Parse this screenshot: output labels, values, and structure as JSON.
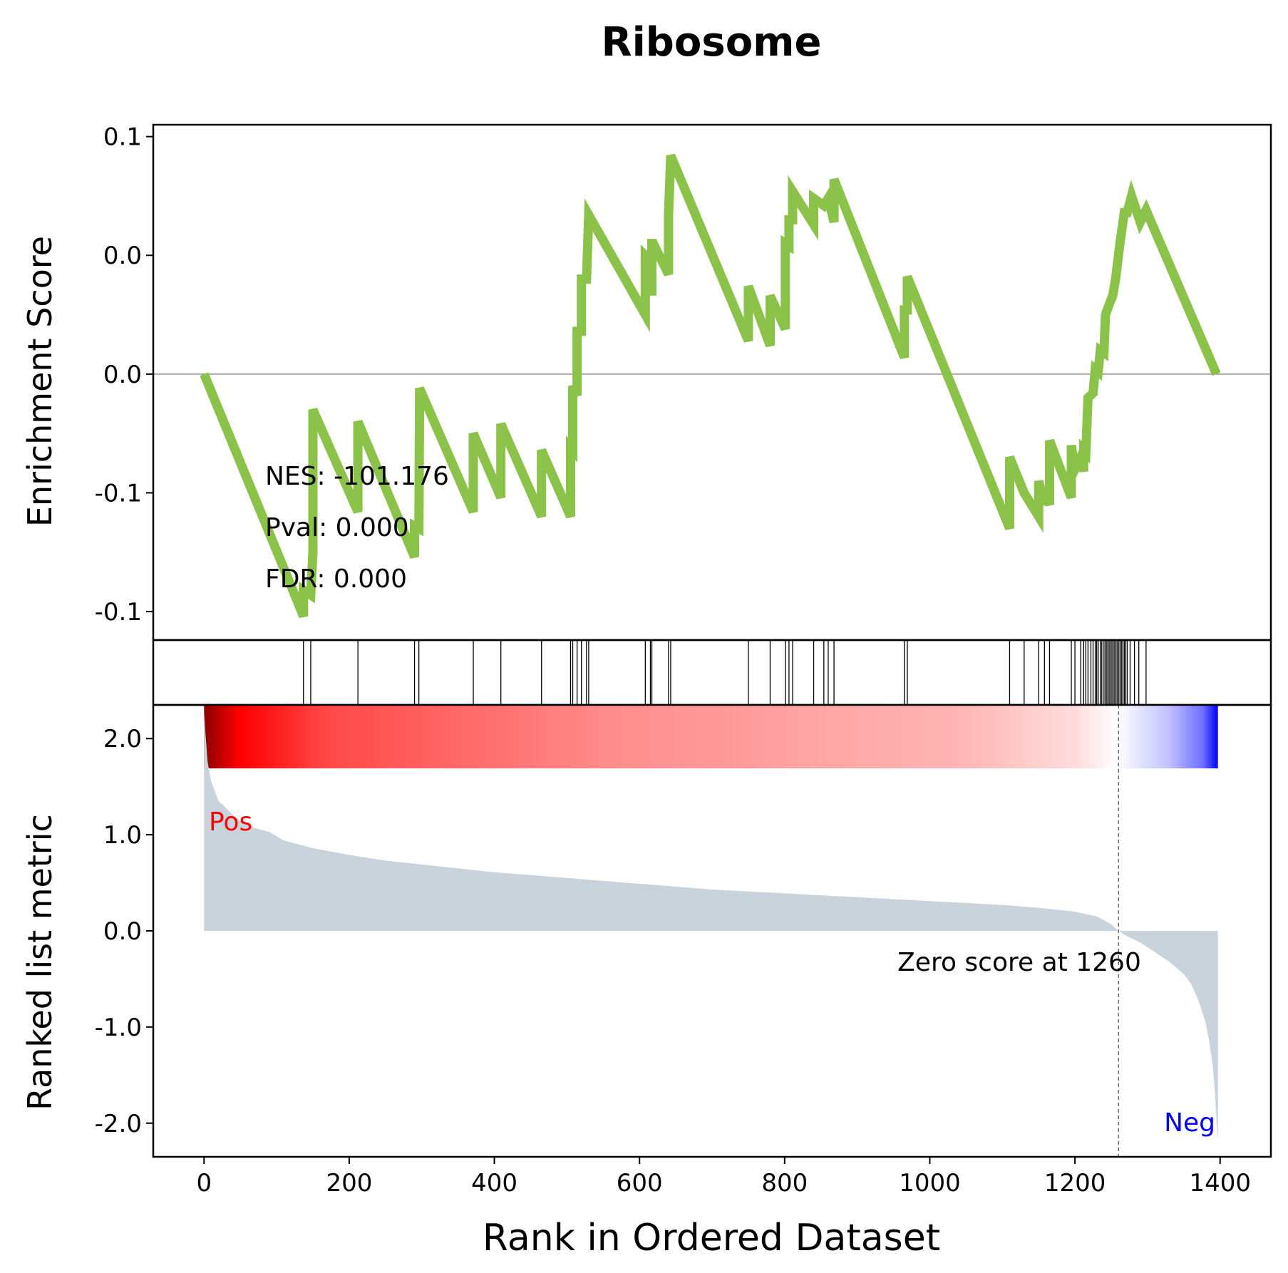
{
  "chart_data": {
    "type": "gsea-enrichment-plot",
    "title": "Ribosome",
    "colors": {
      "running_es": "#8bc34a",
      "ranked_metric_fill": "#c8d3dc",
      "pos_label": "#ff0000",
      "neg_label": "#0000ff",
      "heat_positive": "#ff0000",
      "heat_negative": "#0000ff",
      "axis": "#000000"
    },
    "enrichment": {
      "ylabel": "Enrichment Score",
      "ytick_labels": [
        "0.1",
        "0.0",
        "0.0",
        "-0.1",
        "-0.1"
      ],
      "ytick_values": [
        0.1,
        0.05,
        0.0,
        -0.05,
        -0.1
      ],
      "ylim": [
        -0.112,
        0.105
      ],
      "stats": {
        "nes": "NES: -101.176",
        "pval": "Pval: 0.000",
        "fdr": "FDR: 0.000"
      },
      "running_es": [
        [
          0,
          0.0
        ],
        [
          137,
          -0.102
        ],
        [
          137,
          -0.091
        ],
        [
          147,
          -0.093
        ],
        [
          150,
          -0.075
        ],
        [
          150,
          -0.015
        ],
        [
          212,
          -0.058
        ],
        [
          212,
          -0.02
        ],
        [
          290,
          -0.077
        ],
        [
          290,
          -0.064
        ],
        [
          296,
          -0.065
        ],
        [
          297,
          -0.006
        ],
        [
          371,
          -0.058
        ],
        [
          371,
          -0.025
        ],
        [
          409,
          -0.052
        ],
        [
          409,
          -0.021
        ],
        [
          465,
          -0.06
        ],
        [
          465,
          -0.032
        ],
        [
          505,
          -0.06
        ],
        [
          505,
          -0.031
        ],
        [
          508,
          -0.032
        ],
        [
          508,
          -0.005
        ],
        [
          514,
          -0.009
        ],
        [
          514,
          0.018
        ],
        [
          520,
          0.018
        ],
        [
          520,
          0.04
        ],
        [
          527,
          0.04
        ],
        [
          530,
          0.067
        ],
        [
          608,
          0.025
        ],
        [
          608,
          0.05
        ],
        [
          615,
          0.048
        ],
        [
          615,
          0.035
        ],
        [
          617,
          0.035
        ],
        [
          617,
          0.055
        ],
        [
          619,
          0.055
        ],
        [
          640,
          0.042
        ],
        [
          640,
          0.067
        ],
        [
          643,
          0.092
        ],
        [
          750,
          0.014
        ],
        [
          750,
          0.037
        ],
        [
          780,
          0.012
        ],
        [
          780,
          0.033
        ],
        [
          801,
          0.019
        ],
        [
          801,
          0.055
        ],
        [
          806,
          0.054
        ],
        [
          806,
          0.065
        ],
        [
          811,
          0.065
        ],
        [
          811,
          0.077
        ],
        [
          840,
          0.063
        ],
        [
          840,
          0.074
        ],
        [
          854,
          0.071
        ],
        [
          860,
          0.074
        ],
        [
          868,
          0.064
        ],
        [
          868,
          0.082
        ],
        [
          965,
          0.007
        ],
        [
          965,
          0.027
        ],
        [
          969,
          0.027
        ],
        [
          969,
          0.041
        ],
        [
          1110,
          -0.065
        ],
        [
          1110,
          -0.035
        ],
        [
          1130,
          -0.05
        ],
        [
          1150,
          -0.06
        ],
        [
          1150,
          -0.045
        ],
        [
          1158,
          -0.055
        ],
        [
          1158,
          -0.05
        ],
        [
          1165,
          -0.055
        ],
        [
          1165,
          -0.028
        ],
        [
          1195,
          -0.052
        ],
        [
          1195,
          -0.03
        ],
        [
          1200,
          -0.04
        ],
        [
          1208,
          -0.035
        ],
        [
          1212,
          -0.041
        ],
        [
          1212,
          -0.032
        ],
        [
          1215,
          -0.033
        ],
        [
          1218,
          -0.01
        ],
        [
          1225,
          -0.008
        ],
        [
          1228,
          0.002
        ],
        [
          1232,
          0.001
        ],
        [
          1235,
          0.01
        ],
        [
          1240,
          0.009
        ],
        [
          1242,
          0.025
        ],
        [
          1248,
          0.03
        ],
        [
          1252,
          0.033
        ],
        [
          1256,
          0.04
        ],
        [
          1262,
          0.055
        ],
        [
          1268,
          0.068
        ],
        [
          1272,
          0.068
        ],
        [
          1278,
          0.075
        ],
        [
          1290,
          0.064
        ],
        [
          1298,
          0.069
        ],
        [
          1395,
          0.0
        ]
      ]
    },
    "hit_ranks": [
      137,
      147,
      212,
      290,
      296,
      371,
      409,
      465,
      505,
      508,
      514,
      520,
      527,
      530,
      608,
      615,
      617,
      640,
      643,
      750,
      780,
      801,
      806,
      811,
      840,
      854,
      860,
      868,
      965,
      969,
      1110,
      1130,
      1150,
      1158,
      1165,
      1195,
      1200,
      1208,
      1212,
      1215,
      1218,
      1222,
      1225,
      1228,
      1230,
      1232,
      1235,
      1237,
      1240,
      1242,
      1244,
      1246,
      1248,
      1250,
      1252,
      1254,
      1256,
      1258,
      1260,
      1262,
      1264,
      1266,
      1268,
      1270,
      1272,
      1276,
      1282,
      1288,
      1298
    ],
    "ranked_metric": {
      "ylabel": "Ranked list metric",
      "ytick_labels": [
        "2.0",
        "1.0",
        "0.0",
        "-1.0",
        "-2.0"
      ],
      "ytick_values": [
        2.0,
        1.0,
        0.0,
        -1.0,
        -2.0
      ],
      "ylim": [
        -2.35,
        2.35
      ],
      "values": [
        [
          0,
          2.3
        ],
        [
          2,
          2.05
        ],
        [
          5,
          1.75
        ],
        [
          10,
          1.55
        ],
        [
          15,
          1.45
        ],
        [
          20,
          1.35
        ],
        [
          30,
          1.28
        ],
        [
          40,
          1.2
        ],
        [
          50,
          1.14
        ],
        [
          70,
          1.07
        ],
        [
          90,
          1.03
        ],
        [
          110,
          0.94
        ],
        [
          130,
          0.9
        ],
        [
          150,
          0.86
        ],
        [
          200,
          0.79
        ],
        [
          250,
          0.73
        ],
        [
          300,
          0.69
        ],
        [
          350,
          0.65
        ],
        [
          400,
          0.61
        ],
        [
          450,
          0.58
        ],
        [
          500,
          0.55
        ],
        [
          550,
          0.52
        ],
        [
          600,
          0.49
        ],
        [
          650,
          0.46
        ],
        [
          700,
          0.43
        ],
        [
          750,
          0.41
        ],
        [
          800,
          0.39
        ],
        [
          850,
          0.37
        ],
        [
          900,
          0.35
        ],
        [
          950,
          0.33
        ],
        [
          1000,
          0.31
        ],
        [
          1050,
          0.29
        ],
        [
          1100,
          0.27
        ],
        [
          1150,
          0.24
        ],
        [
          1200,
          0.2
        ],
        [
          1230,
          0.15
        ],
        [
          1250,
          0.07
        ],
        [
          1258,
          0.01
        ],
        [
          1260,
          0.0
        ],
        [
          1270,
          -0.05
        ],
        [
          1290,
          -0.12
        ],
        [
          1310,
          -0.22
        ],
        [
          1330,
          -0.32
        ],
        [
          1350,
          -0.45
        ],
        [
          1360,
          -0.55
        ],
        [
          1370,
          -0.72
        ],
        [
          1380,
          -0.95
        ],
        [
          1385,
          -1.15
        ],
        [
          1390,
          -1.4
        ],
        [
          1393,
          -1.7
        ],
        [
          1396,
          -2.1
        ],
        [
          1397,
          -2.15
        ]
      ],
      "pos_label": "Pos",
      "neg_label": "Neg",
      "zero_score_text": "Zero score at 1260",
      "zero_rank": 1260
    },
    "x": {
      "label": "Rank in Ordered Dataset",
      "tick_values": [
        0,
        200,
        400,
        600,
        800,
        1000,
        1200,
        1400
      ],
      "tick_labels": [
        "0",
        "200",
        "400",
        "600",
        "800",
        "1000",
        "1200",
        "1400"
      ],
      "xlim": [
        -70,
        1470
      ],
      "n_genes": 1400
    }
  }
}
